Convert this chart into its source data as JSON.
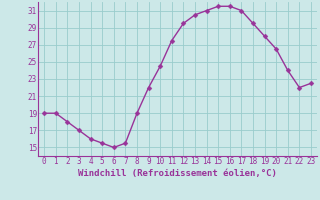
{
  "x": [
    0,
    1,
    2,
    3,
    4,
    5,
    6,
    7,
    8,
    9,
    10,
    11,
    12,
    13,
    14,
    15,
    16,
    17,
    18,
    19,
    20,
    21,
    22,
    23
  ],
  "y": [
    19,
    19,
    18,
    17,
    16,
    15.5,
    15,
    15.5,
    19,
    22,
    24.5,
    27.5,
    29.5,
    30.5,
    31,
    31.5,
    31.5,
    31,
    29.5,
    28,
    26.5,
    24,
    22,
    22.5
  ],
  "line_color": "#993399",
  "marker_color": "#993399",
  "bg_color": "#cce8e8",
  "grid_color": "#99cccc",
  "xlabel": "Windchill (Refroidissement éolien,°C)",
  "xlabel_color": "#993399",
  "tick_color": "#993399",
  "axis_line_color": "#993399",
  "ylim": [
    14.0,
    32.0
  ],
  "yticks": [
    15,
    17,
    19,
    21,
    23,
    25,
    27,
    29,
    31
  ],
  "xticks": [
    0,
    1,
    2,
    3,
    4,
    5,
    6,
    7,
    8,
    9,
    10,
    11,
    12,
    13,
    14,
    15,
    16,
    17,
    18,
    19,
    20,
    21,
    22,
    23
  ],
  "xlim": [
    -0.5,
    23.5
  ],
  "line_width": 1.0,
  "marker_size": 2.5,
  "tick_fontsize": 5.5,
  "xlabel_fontsize": 6.5
}
